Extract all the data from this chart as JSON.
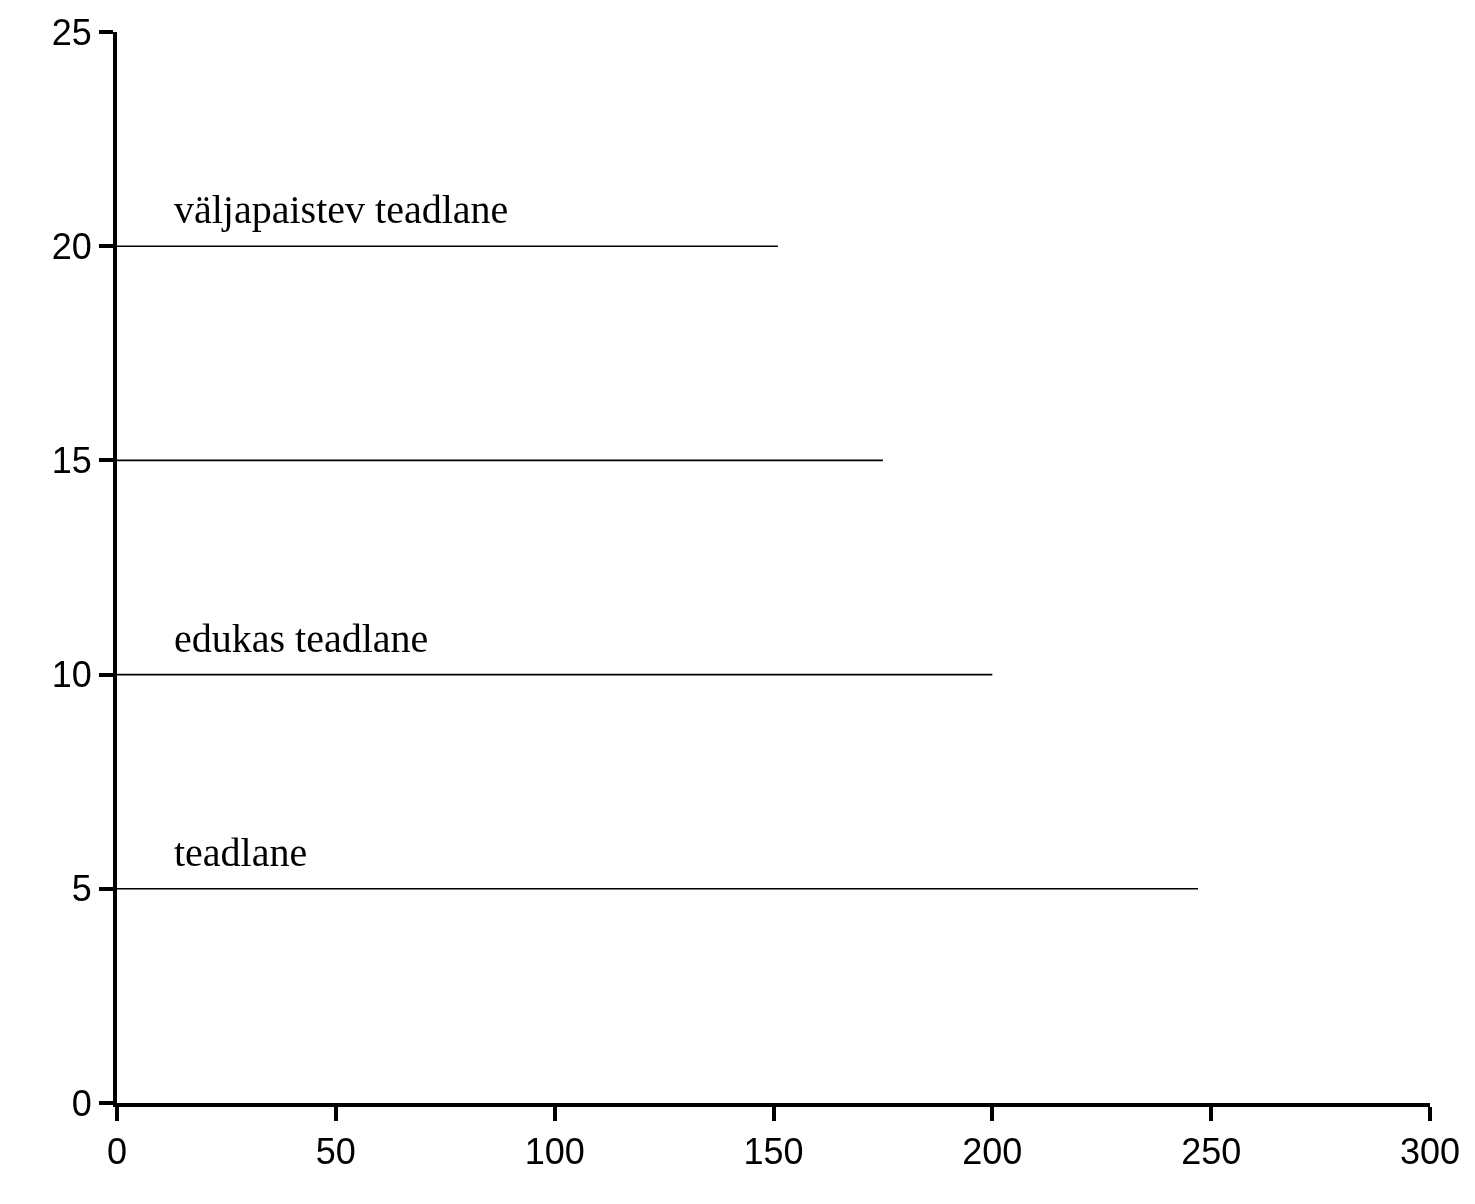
{
  "chart_data": {
    "type": "line",
    "xlim": [
      0,
      300
    ],
    "xticks": [
      0,
      50,
      100,
      150,
      200,
      250,
      300
    ],
    "ylim": [
      0,
      25
    ],
    "yticks": [
      0,
      5,
      10,
      15,
      20,
      25
    ],
    "legend": false,
    "marker": "none",
    "line_style": "solid",
    "series": [
      {
        "name": "väljapaistev teadlane",
        "color": "#000000",
        "x": [
          0,
          151
        ],
        "values": [
          20,
          20
        ]
      },
      {
        "color": "#000000",
        "x": [
          0,
          175
        ],
        "values": [
          15,
          15
        ]
      },
      {
        "name": "edukas teadlane",
        "color": "#000000",
        "x": [
          0,
          200
        ],
        "values": [
          10,
          10
        ]
      },
      {
        "name": "teadlane",
        "color": "#000000",
        "x": [
          0,
          247
        ],
        "values": [
          5,
          5
        ]
      }
    ]
  }
}
